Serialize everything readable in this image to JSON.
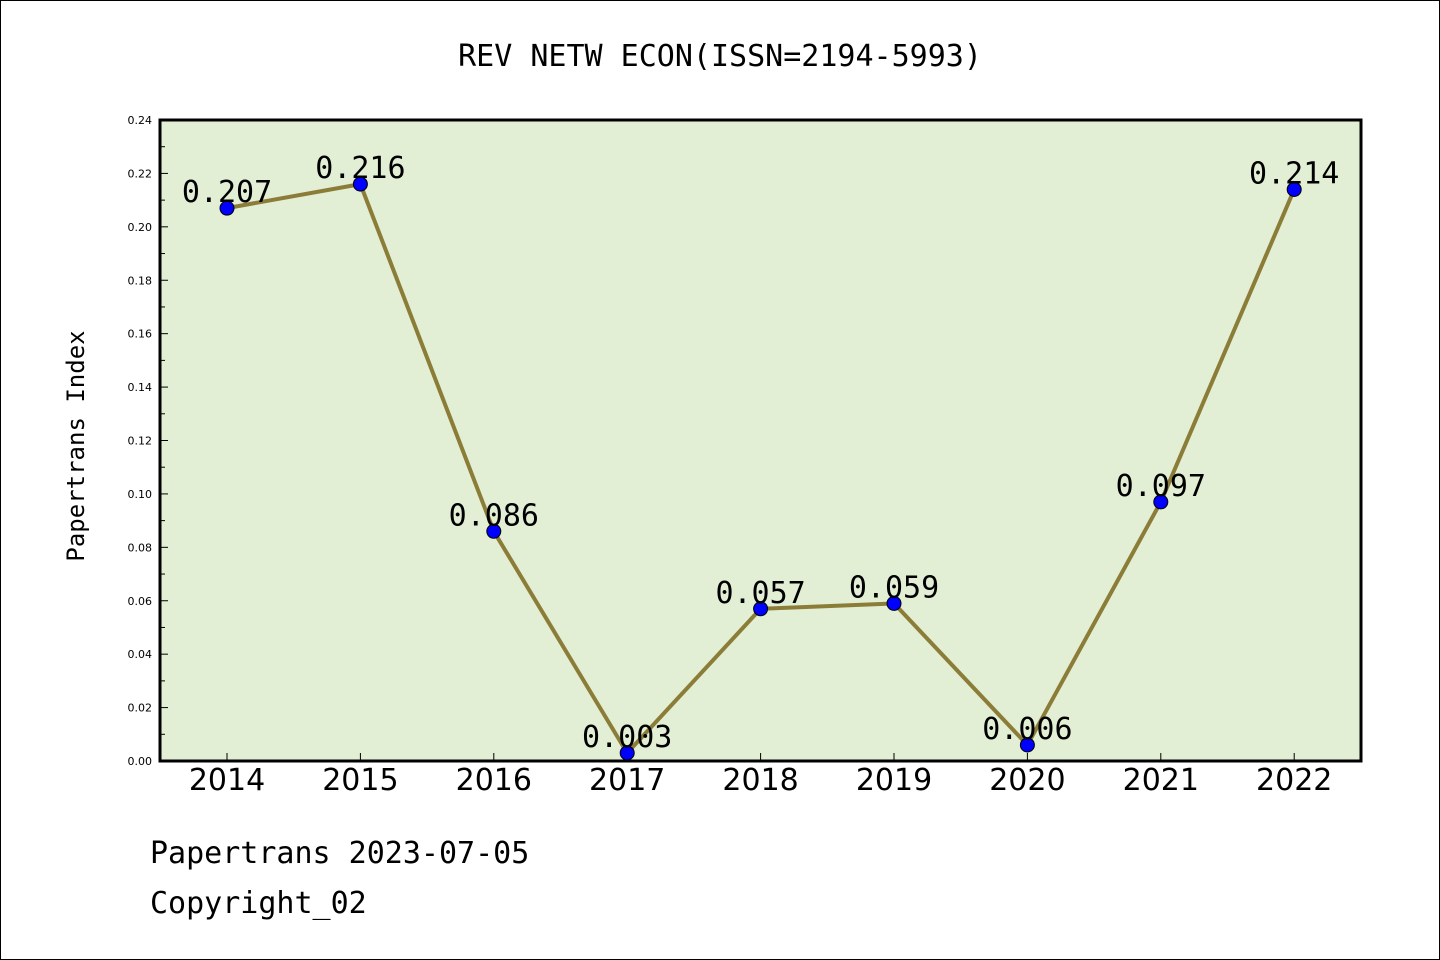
{
  "chart_data": {
    "type": "line",
    "title": "REV NETW ECON(ISSN=2194-5993)",
    "xlabel": "",
    "ylabel": "Papertrans Index",
    "categories": [
      "2014",
      "2015",
      "2016",
      "2017",
      "2018",
      "2019",
      "2020",
      "2021",
      "2022"
    ],
    "values": [
      0.207,
      0.216,
      0.086,
      0.003,
      0.057,
      0.059,
      0.006,
      0.097,
      0.214
    ],
    "data_labels": [
      "0.207",
      "0.216",
      "0.086",
      "0.003",
      "0.057",
      "0.059",
      "0.006",
      "0.097",
      "0.214"
    ],
    "ylim": [
      0,
      0.24
    ],
    "yticks": [
      "0.00",
      "0.02",
      "0.04",
      "0.06",
      "0.08",
      "0.10",
      "0.12",
      "0.14",
      "0.16",
      "0.18",
      "0.20",
      "0.22",
      "0.24"
    ],
    "grid": false,
    "colors": {
      "plot_background": "#e2efd5",
      "line": "#8b7d37",
      "marker": "#0000ff"
    }
  },
  "footer": {
    "date_line": "Papertrans 2023-07-05",
    "copyright": "Copyright_02"
  }
}
